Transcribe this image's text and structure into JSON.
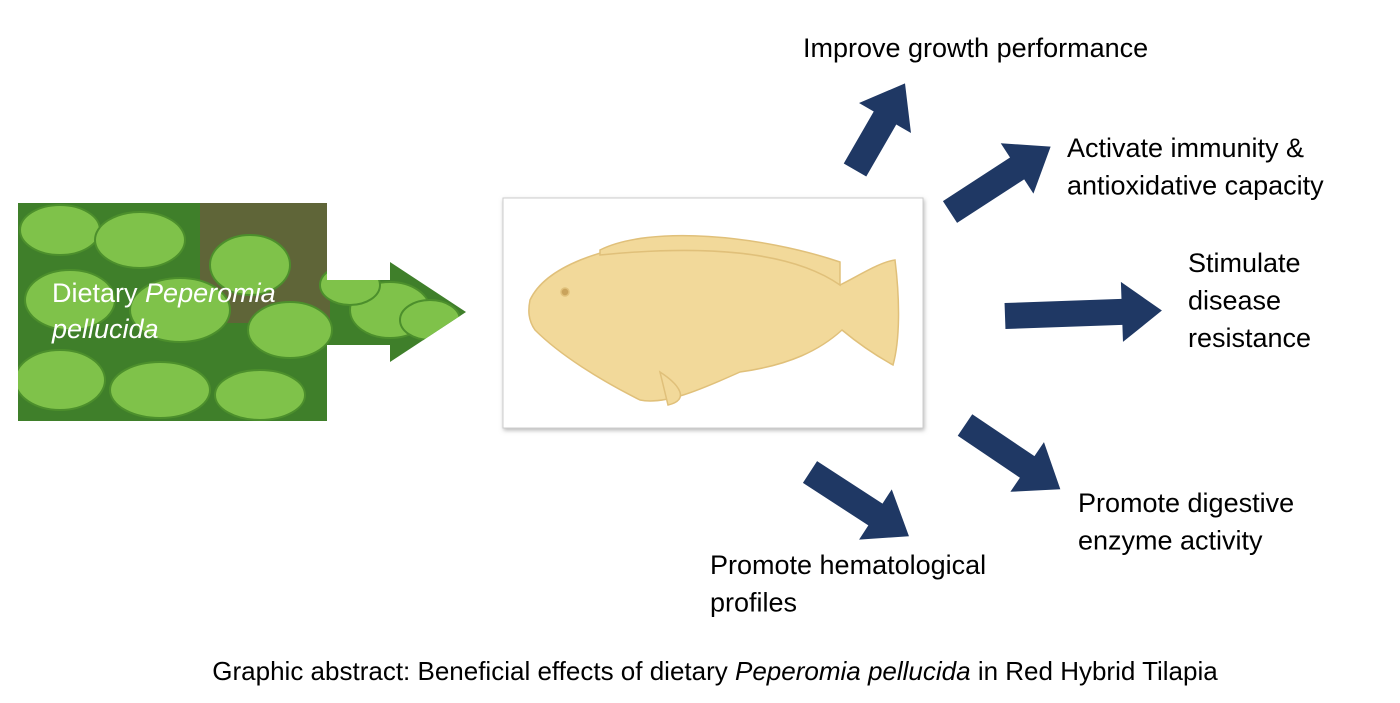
{
  "source": {
    "label": "Dietary",
    "species_line1": "Peperomia",
    "species_line2": "pellucida"
  },
  "outcomes": [
    {
      "lines": [
        "Improve growth performance"
      ]
    },
    {
      "lines": [
        "Activate immunity &",
        "antioxidative capacity"
      ]
    },
    {
      "lines": [
        "Stimulate",
        "disease",
        "resistance"
      ]
    },
    {
      "lines": [
        "Promote digestive",
        "enzyme activity"
      ]
    },
    {
      "lines": [
        "Promote hematological",
        "profiles"
      ]
    }
  ],
  "caption": {
    "prefix": "Graphic abstract: Beneficial effects of dietary",
    "species": "Peperomia pellucida",
    "suffix": "in Red Hybrid Tilapia"
  }
}
